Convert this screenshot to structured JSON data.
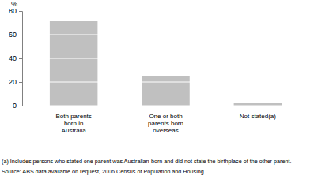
{
  "chart_data": {
    "type": "bar",
    "ylabel": "%",
    "categories": [
      "Both parents\nborn in\nAustralia",
      "One or both\nparents born\noverseas",
      "Not stated(a)"
    ],
    "values": [
      72,
      25,
      2
    ],
    "color": "#c0c0c0",
    "ylim": [
      0,
      80
    ],
    "yticks": [
      0,
      20,
      40,
      60,
      80
    ],
    "grid": true,
    "annotations": [
      "(a) Includes persons who stated one parent was Australian-born and did not state the birthplace of the other parent.",
      "Source: ABS data available on request, 2006 Census of Population and Housing."
    ]
  }
}
